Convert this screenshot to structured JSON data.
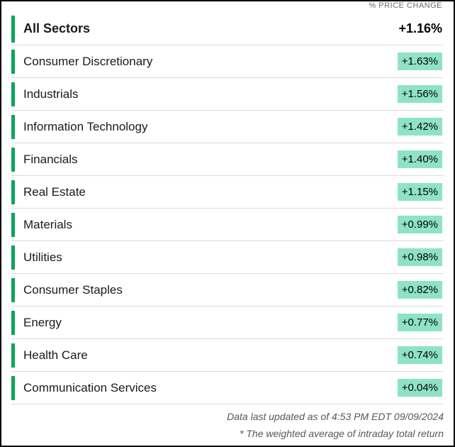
{
  "type": "table",
  "column_header": "% PRICE CHANGE",
  "header_row": {
    "label": "All Sectors",
    "value": "+1.16%"
  },
  "rows": [
    {
      "label": "Consumer Discretionary",
      "value": "+1.63%"
    },
    {
      "label": "Industrials",
      "value": "+1.56%"
    },
    {
      "label": "Information Technology",
      "value": "+1.42%"
    },
    {
      "label": "Financials",
      "value": "+1.40%"
    },
    {
      "label": "Real Estate",
      "value": "+1.15%"
    },
    {
      "label": "Materials",
      "value": "+0.99%"
    },
    {
      "label": "Utilities",
      "value": "+0.98%"
    },
    {
      "label": "Consumer Staples",
      "value": "+0.82%"
    },
    {
      "label": "Energy",
      "value": "+0.77%"
    },
    {
      "label": "Health Care",
      "value": "+0.74%"
    },
    {
      "label": "Communication Services",
      "value": "+0.04%"
    }
  ],
  "footnotes": {
    "updated": "Data last updated as of 4:53 PM EDT 09/09/2024",
    "note": "* The weighted average of intraday total return"
  },
  "colors": {
    "accent": "#0aa65b",
    "badge_bg": "#8fe3c5",
    "border": "#000000",
    "row_divider": "#dcdcdc",
    "text": "#1a1a1a",
    "muted": "#575757"
  }
}
